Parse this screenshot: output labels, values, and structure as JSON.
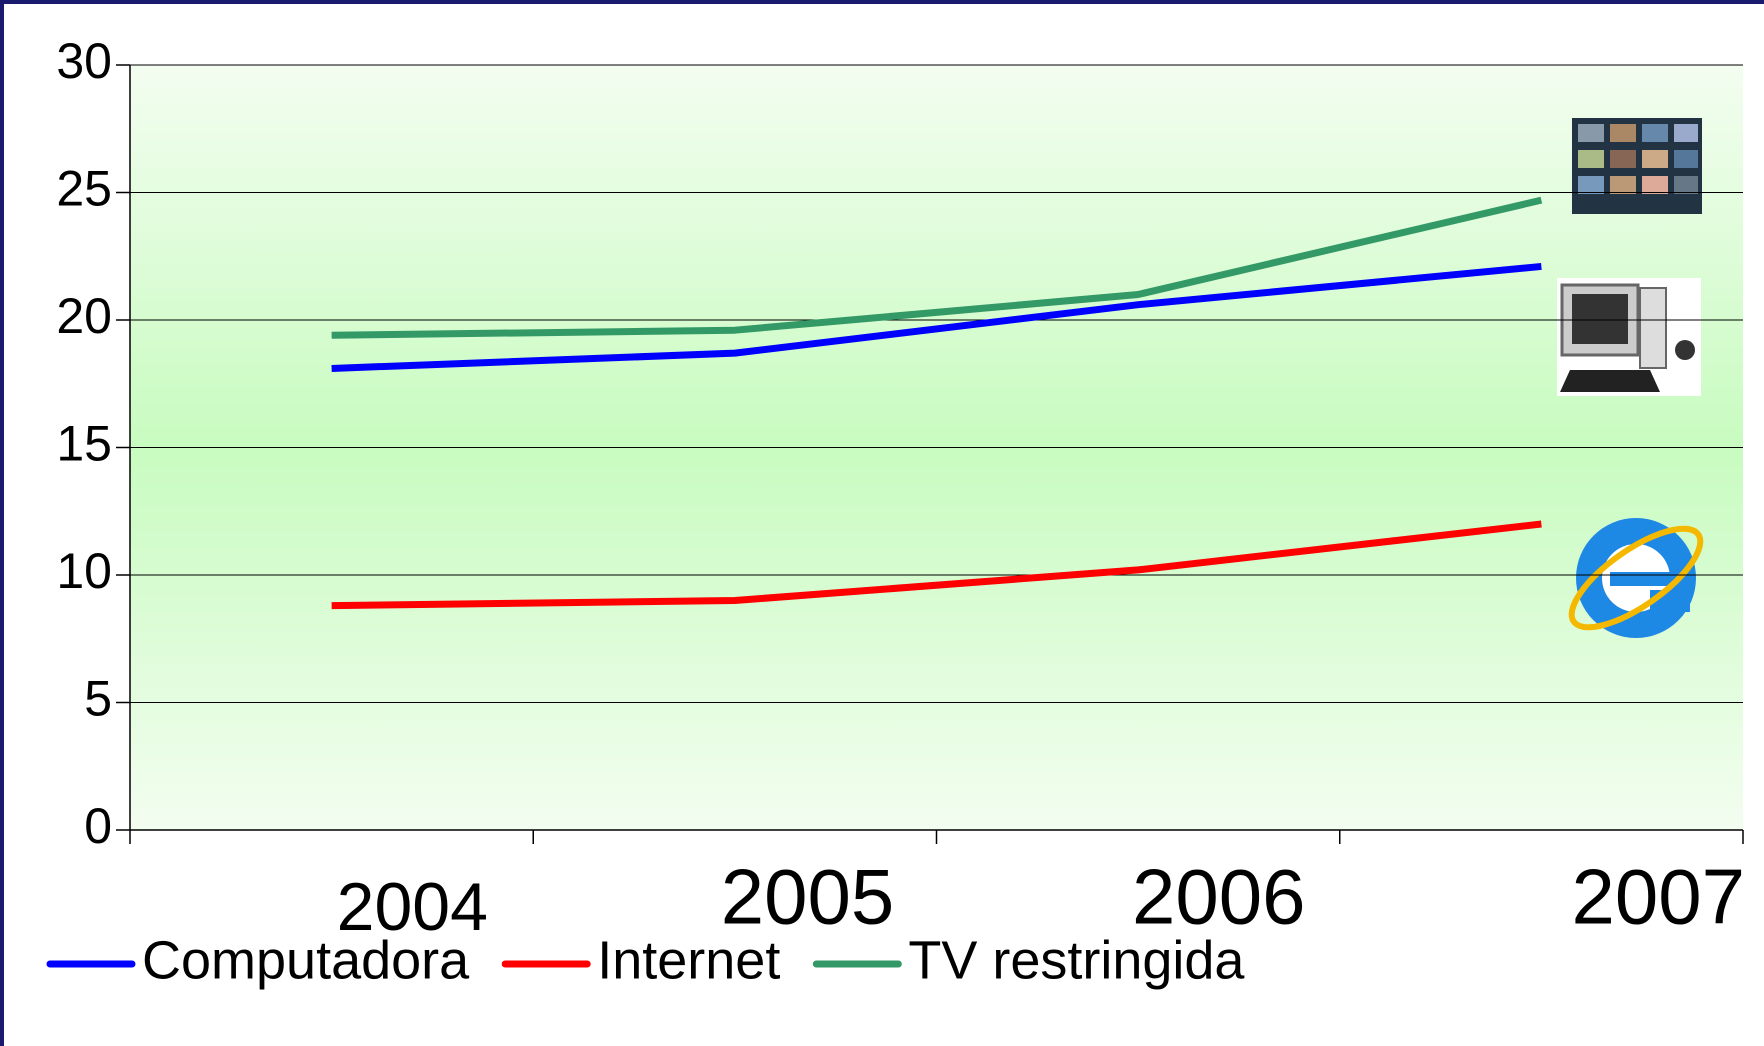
{
  "chart_data": {
    "type": "line",
    "categories": [
      "2004",
      "2005",
      "2006",
      "2007"
    ],
    "series": [
      {
        "name": "Computadora",
        "color": "#0000ff",
        "values": [
          18.1,
          18.7,
          20.6,
          22.1
        ]
      },
      {
        "name": "Internet",
        "color": "#ff0000",
        "values": [
          8.8,
          9.0,
          10.2,
          12.0
        ]
      },
      {
        "name": "TV restringida",
        "color": "#339966",
        "values": [
          19.4,
          19.6,
          21.0,
          24.7
        ]
      }
    ],
    "ylim": [
      0,
      30
    ],
    "yticks": [
      0,
      5,
      10,
      15,
      20,
      25,
      30
    ],
    "grid": true,
    "legend": "bottom"
  }
}
